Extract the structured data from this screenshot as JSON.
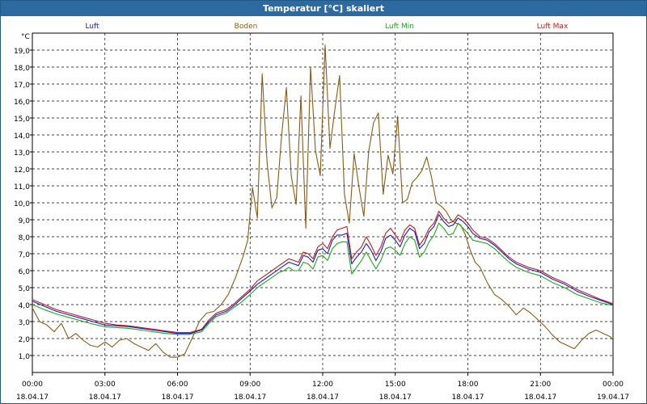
{
  "window": {
    "title": "Temperatur [°C] skaliert"
  },
  "chart_data": {
    "type": "line",
    "title": "Temperatur [°C] skaliert",
    "ylabel": "°C",
    "xlabel": "",
    "ylim": [
      0,
      20
    ],
    "xlim": [
      0,
      24
    ],
    "grid": true,
    "yticks": [
      1,
      2,
      3,
      4,
      5,
      6,
      7,
      8,
      9,
      10,
      11,
      12,
      13,
      14,
      15,
      16,
      17,
      18,
      19
    ],
    "ytick_labels": [
      "1,0",
      "2,0",
      "3,0",
      "4,0",
      "5,0",
      "6,0",
      "7,0",
      "8,0",
      "9,0",
      "10,0",
      "11,0",
      "12,0",
      "13,0",
      "14,0",
      "15,0",
      "16,0",
      "17,0",
      "18,0",
      "19,0"
    ],
    "xticks": [
      0,
      3,
      6,
      9,
      12,
      15,
      18,
      21,
      24
    ],
    "xtick_times": [
      "00:00",
      "03:00",
      "06:00",
      "09:00",
      "12:00",
      "15:00",
      "18:00",
      "21:00",
      "00:00"
    ],
    "xtick_dates": [
      "18.04.17",
      "18.04.17",
      "18.04.17",
      "18.04.17",
      "18.04.17",
      "18.04.17",
      "18.04.17",
      "18.04.17",
      "19.04.17"
    ],
    "legend_position": "top",
    "series": [
      {
        "name": "Luft",
        "color": "#1a1ac8",
        "x": [
          0,
          0.5,
          1,
          1.5,
          2,
          2.5,
          3,
          3.5,
          4,
          4.5,
          5,
          5.5,
          6,
          6.5,
          7,
          7.3,
          7.6,
          8,
          8.3,
          8.6,
          9,
          9.3,
          9.6,
          9.9,
          10.2,
          10.4,
          10.6,
          10.8,
          11,
          11.2,
          11.4,
          11.6,
          11.8,
          12,
          12.2,
          12.4,
          12.6,
          12.8,
          13,
          13.2,
          13.4,
          13.6,
          13.8,
          14,
          14.2,
          14.4,
          14.6,
          14.8,
          15,
          15.2,
          15.4,
          15.6,
          15.8,
          16,
          16.2,
          16.4,
          16.6,
          16.8,
          17,
          17.2,
          17.4,
          17.6,
          17.8,
          18,
          18.2,
          18.5,
          18.8,
          19.1,
          19.4,
          19.7,
          20,
          20.5,
          21,
          21.5,
          22,
          22.5,
          23,
          23.5,
          24
        ],
        "values": [
          4.2,
          3.9,
          3.6,
          3.4,
          3.2,
          3.0,
          2.8,
          2.75,
          2.7,
          2.6,
          2.5,
          2.4,
          2.3,
          2.3,
          2.5,
          3.0,
          3.4,
          3.6,
          3.9,
          4.3,
          4.8,
          5.2,
          5.5,
          5.8,
          6.1,
          6.3,
          6.5,
          6.4,
          6.3,
          6.9,
          6.8,
          6.5,
          7.2,
          7.3,
          7.0,
          7.8,
          8.1,
          8.1,
          8.2,
          6.4,
          6.8,
          7.1,
          7.6,
          7.2,
          6.6,
          7.1,
          7.9,
          8.1,
          7.8,
          7.4,
          8.1,
          8.5,
          8.3,
          7.3,
          7.6,
          8.3,
          8.6,
          9.3,
          8.9,
          8.6,
          8.7,
          9.1,
          8.9,
          8.6,
          8.2,
          7.9,
          7.8,
          7.5,
          7.1,
          6.7,
          6.4,
          6.1,
          5.9,
          5.5,
          5.2,
          4.8,
          4.5,
          4.25,
          4.0
        ]
      },
      {
        "name": "Boden",
        "color": "#8b5a14",
        "x": [
          0,
          0.3,
          0.6,
          0.9,
          1.2,
          1.5,
          1.8,
          2.1,
          2.4,
          2.7,
          3,
          3.3,
          3.6,
          3.9,
          4.2,
          4.5,
          4.8,
          5.1,
          5.4,
          5.7,
          6,
          6.3,
          6.6,
          6.9,
          7.2,
          7.5,
          7.8,
          8.1,
          8.4,
          8.7,
          8.9,
          9.1,
          9.3,
          9.5,
          9.7,
          9.9,
          10.1,
          10.3,
          10.5,
          10.7,
          10.9,
          11.1,
          11.3,
          11.5,
          11.7,
          11.9,
          12.1,
          12.3,
          12.5,
          12.7,
          12.9,
          13.1,
          13.3,
          13.5,
          13.7,
          13.9,
          14.1,
          14.3,
          14.5,
          14.7,
          14.9,
          15.1,
          15.3,
          15.5,
          15.7,
          15.9,
          16.1,
          16.3,
          16.5,
          16.7,
          16.9,
          17.1,
          17.3,
          17.5,
          17.7,
          17.9,
          18.1,
          18.3,
          18.5,
          18.8,
          19.1,
          19.4,
          19.7,
          20,
          20.3,
          20.6,
          20.9,
          21.2,
          21.5,
          21.8,
          22.1,
          22.4,
          22.7,
          23,
          23.3,
          23.6,
          23.9,
          24
        ],
        "values": [
          3.8,
          3.0,
          2.8,
          2.4,
          2.9,
          2.0,
          2.3,
          1.9,
          1.6,
          1.5,
          1.8,
          1.5,
          1.9,
          2.0,
          1.7,
          1.5,
          1.3,
          1.7,
          1.2,
          0.9,
          0.9,
          1.1,
          2.0,
          3.0,
          3.5,
          3.6,
          4.0,
          4.6,
          5.6,
          6.8,
          7.8,
          10.9,
          9.1,
          17.6,
          12.4,
          9.7,
          10.3,
          13.9,
          16.8,
          11.6,
          9.9,
          16.3,
          8.5,
          18.0,
          13.1,
          11.6,
          19.3,
          13.2,
          15.5,
          17.5,
          10.5,
          8.8,
          12.9,
          10.9,
          9.2,
          13.0,
          14.7,
          15.3,
          10.5,
          12.8,
          11.7,
          15.1,
          10.0,
          10.2,
          11.2,
          11.5,
          11.9,
          12.7,
          11.5,
          10.0,
          9.8,
          9.5,
          9.0,
          8.8,
          8.7,
          8.1,
          7.2,
          6.5,
          6.2,
          5.3,
          4.6,
          4.3,
          3.9,
          3.4,
          3.8,
          3.5,
          3.1,
          2.7,
          2.2,
          1.8,
          1.6,
          1.4,
          1.9,
          2.3,
          2.5,
          2.3,
          2.1,
          1.9
        ]
      },
      {
        "name": "Luft Min",
        "color": "#1aa81a",
        "x": [
          0,
          0.5,
          1,
          1.5,
          2,
          2.5,
          3,
          3.5,
          4,
          4.5,
          5,
          5.5,
          6,
          6.5,
          7,
          7.3,
          7.6,
          8,
          8.3,
          8.6,
          9,
          9.3,
          9.6,
          9.9,
          10.2,
          10.4,
          10.6,
          10.8,
          11,
          11.2,
          11.4,
          11.6,
          11.8,
          12,
          12.2,
          12.4,
          12.6,
          12.8,
          13,
          13.2,
          13.4,
          13.6,
          13.8,
          14,
          14.2,
          14.4,
          14.6,
          14.8,
          15,
          15.2,
          15.4,
          15.6,
          15.8,
          16,
          16.2,
          16.4,
          16.6,
          16.8,
          17,
          17.2,
          17.4,
          17.6,
          17.8,
          18,
          18.2,
          18.5,
          18.8,
          19.1,
          19.4,
          19.7,
          20,
          20.5,
          21,
          21.5,
          22,
          22.5,
          23,
          23.5,
          24
        ],
        "values": [
          4.0,
          3.7,
          3.45,
          3.25,
          3.05,
          2.85,
          2.7,
          2.65,
          2.6,
          2.5,
          2.4,
          2.3,
          2.25,
          2.25,
          2.4,
          2.9,
          3.3,
          3.5,
          3.8,
          4.1,
          4.6,
          5.0,
          5.3,
          5.6,
          5.9,
          6.0,
          6.2,
          6.0,
          6.0,
          6.5,
          6.4,
          6.1,
          6.8,
          6.9,
          6.6,
          7.3,
          7.6,
          7.7,
          7.7,
          5.8,
          6.2,
          6.6,
          7.1,
          6.6,
          6.1,
          6.6,
          7.3,
          7.4,
          7.2,
          6.9,
          7.6,
          8.0,
          7.8,
          6.8,
          7.1,
          7.7,
          8.1,
          8.8,
          8.5,
          8.1,
          8.2,
          8.8,
          8.5,
          8.2,
          7.8,
          7.7,
          7.6,
          7.3,
          6.9,
          6.5,
          6.2,
          5.9,
          5.7,
          5.3,
          5.0,
          4.6,
          4.35,
          4.1,
          3.95
        ]
      },
      {
        "name": "Luft Max",
        "color": "#c81a1a",
        "x": [
          0,
          0.5,
          1,
          1.5,
          2,
          2.5,
          3,
          3.5,
          4,
          4.5,
          5,
          5.5,
          6,
          6.5,
          7,
          7.3,
          7.6,
          8,
          8.3,
          8.6,
          9,
          9.3,
          9.6,
          9.9,
          10.2,
          10.4,
          10.6,
          10.8,
          11,
          11.2,
          11.4,
          11.6,
          11.8,
          12,
          12.2,
          12.4,
          12.6,
          12.8,
          13,
          13.2,
          13.4,
          13.6,
          13.8,
          14,
          14.2,
          14.4,
          14.6,
          14.8,
          15,
          15.2,
          15.4,
          15.6,
          15.8,
          16,
          16.2,
          16.4,
          16.6,
          16.8,
          17,
          17.2,
          17.4,
          17.6,
          17.8,
          18,
          18.2,
          18.5,
          18.8,
          19.1,
          19.4,
          19.7,
          20,
          20.5,
          21,
          21.5,
          22,
          22.5,
          23,
          23.5,
          24
        ],
        "values": [
          4.3,
          4.0,
          3.7,
          3.5,
          3.3,
          3.1,
          2.9,
          2.8,
          2.75,
          2.65,
          2.55,
          2.45,
          2.35,
          2.35,
          2.55,
          3.1,
          3.5,
          3.7,
          4.0,
          4.4,
          4.9,
          5.4,
          5.7,
          6.0,
          6.3,
          6.5,
          6.7,
          6.6,
          6.5,
          7.1,
          7.0,
          6.7,
          7.4,
          7.6,
          7.3,
          8.0,
          8.4,
          8.5,
          8.6,
          6.7,
          7.1,
          7.4,
          8.0,
          7.5,
          6.9,
          7.4,
          8.2,
          8.5,
          8.1,
          7.7,
          8.4,
          8.7,
          8.5,
          7.5,
          7.9,
          8.5,
          8.8,
          9.5,
          9.1,
          8.8,
          8.9,
          9.3,
          9.1,
          8.8,
          8.4,
          8.0,
          7.9,
          7.6,
          7.2,
          6.8,
          6.5,
          6.2,
          6.0,
          5.6,
          5.3,
          4.9,
          4.6,
          4.3,
          4.05
        ]
      }
    ]
  }
}
